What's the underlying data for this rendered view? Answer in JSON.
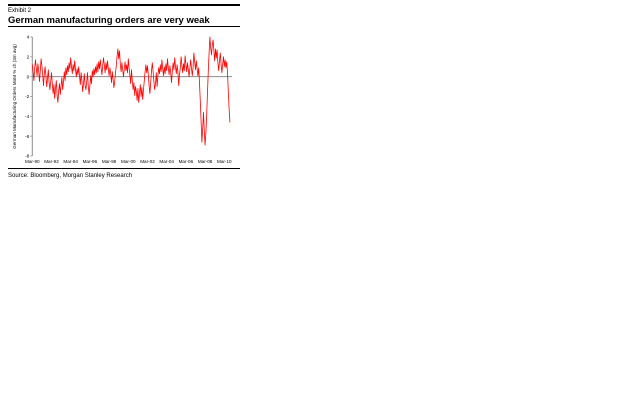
{
  "page": {
    "exhibit_label": "Exhibit 2",
    "title": "German manufacturing orders are very weak",
    "source": "Source: Bloomberg, Morgan Stanley Research"
  },
  "chart_data": {
    "type": "line",
    "title": "German manufacturing orders are very weak",
    "ylabel": "German Manufacturing Orders MoM % ch (3m avg)",
    "xlabel": "",
    "x_start": "Mar-1990",
    "x_freq": "monthly",
    "x_tick_labels": [
      "Mar-90",
      "Mar-92",
      "Mar-94",
      "Mar-96",
      "Mar-98",
      "Mar-00",
      "Mar-02",
      "Mar-04",
      "Mar-06",
      "Mar-08",
      "Mar-10"
    ],
    "x_tick_every_n_points": 24,
    "y_ticks": [
      4,
      2,
      0,
      -2,
      -4,
      -6,
      -8
    ],
    "ylim": [
      -8,
      4
    ],
    "grid": false,
    "legend": "none",
    "zero_line": true,
    "line_color": "#ff0000",
    "axis_color": "#8c8c8c",
    "values": [
      1.2,
      0.5,
      -0.4,
      0.9,
      1.7,
      0.8,
      0.1,
      1.3,
      0.6,
      -0.5,
      0.6,
      1.8,
      1.1,
      0.2,
      -0.9,
      0.3,
      1.0,
      0.1,
      -1.0,
      -0.2,
      0.7,
      -0.6,
      -1.3,
      -0.5,
      0.4,
      -0.7,
      -1.7,
      -0.8,
      -2.2,
      -1.2,
      -0.4,
      -1.9,
      -2.6,
      -1.4,
      -0.7,
      -1.8,
      -0.9,
      -0.1,
      -1.3,
      -0.5,
      0.5,
      -0.4,
      0.9,
      0.2,
      1.1,
      0.5,
      1.4,
      0.8,
      1.9,
      1.0,
      0.3,
      1.2,
      0.6,
      1.6,
      0.7,
      0.0,
      0.8,
      0.2,
      1.0,
      0.1,
      -0.8,
      0.4,
      -0.4,
      -1.5,
      -0.7,
      0.3,
      -0.9,
      -1.3,
      -0.5,
      0.4,
      -1.0,
      -1.8,
      -0.9,
      0.1,
      -0.7,
      0.6,
      0.0,
      0.8,
      0.2,
      1.0,
      0.4,
      1.3,
      0.5,
      1.5,
      0.8,
      1.7,
      0.9,
      0.2,
      1.1,
      1.9,
      1.2,
      0.4,
      1.4,
      0.7,
      1.6,
      0.8,
      0.1,
      0.9,
      0.3,
      -0.6,
      0.5,
      -0.3,
      -1.1,
      -0.5,
      0.4,
      1.1,
      2.1,
      2.8,
      1.8,
      2.6,
      1.3,
      0.5,
      1.4,
      0.7,
      0.0,
      0.8,
      1.5,
      0.6,
      1.2,
      0.4,
      1.8,
      0.9,
      0.1,
      -0.7,
      0.7,
      -0.4,
      -1.3,
      -0.6,
      -1.9,
      -1.0,
      -1.5,
      -2.4,
      -1.2,
      -2.6,
      -1.7,
      -0.8,
      -2.0,
      -1.1,
      -2.3,
      -1.3,
      -0.4,
      0.5,
      1.2,
      0.4,
      1.1,
      0.2,
      -0.9,
      -1.7,
      -0.6,
      0.6,
      1.4,
      0.5,
      -0.5,
      -1.3,
      -0.7,
      0.4,
      -1.0,
      0.1,
      0.9,
      0.3,
      1.2,
      0.5,
      1.7,
      0.8,
      0.1,
      1.0,
      0.3,
      1.3,
      0.6,
      1.8,
      0.9,
      0.2,
      1.1,
      0.4,
      -0.6,
      0.5,
      1.4,
      0.7,
      1.9,
      1.0,
      0.3,
      1.2,
      0.5,
      -0.9,
      0.2,
      0.9,
      2.0,
      1.1,
      0.4,
      1.3,
      0.6,
      2.1,
      1.2,
      0.5,
      1.4,
      0.7,
      0.0,
      0.9,
      1.7,
      0.8,
      0.1,
      1.0,
      2.4,
      1.5,
      0.7,
      1.6,
      0.8,
      0.1,
      0.9,
      -0.6,
      -2.5,
      -4.5,
      -6.6,
      -5.2,
      -3.6,
      -5.5,
      -6.9,
      -5.6,
      -3.8,
      -1.6,
      0.6,
      2.4,
      4.0,
      2.9,
      2.2,
      3.2,
      3.7,
      2.6,
      1.6,
      2.8,
      1.9,
      2.7,
      1.4,
      0.6,
      1.6,
      2.4,
      1.2,
      0.4,
      1.3,
      2.0,
      1.0,
      1.7,
      0.9,
      1.5,
      0.4,
      -1.5,
      -3.2,
      -4.6
    ]
  }
}
